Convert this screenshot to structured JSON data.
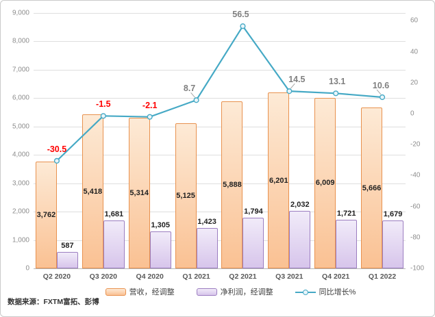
{
  "chart_data": {
    "type": "combo-bar-line",
    "categories": [
      "Q2 2020",
      "Q3 2020",
      "Q4 2020",
      "Q1 2021",
      "Q2 2021",
      "Q3 2021",
      "Q4 2021",
      "Q1 2022"
    ],
    "series": [
      {
        "name": "营收，经调整",
        "type": "bar",
        "axis": "left",
        "values": [
          3762,
          5418,
          5314,
          5125,
          5888,
          6201,
          6009,
          5666
        ],
        "labels": [
          "3,762",
          "5,418",
          "5,314",
          "5,125",
          "5,888",
          "6,201",
          "6,009",
          "5,666"
        ],
        "fill_top": "#fdead6",
        "fill_bottom": "#fac193",
        "border": "#e8914e",
        "label_placement": "inside-center"
      },
      {
        "name": "净利润，经调整",
        "type": "bar",
        "axis": "left",
        "values": [
          587,
          1681,
          1305,
          1423,
          1794,
          2032,
          1721,
          1679
        ],
        "labels": [
          "587",
          "1,681",
          "1,305",
          "1,423",
          "1,794",
          "2,032",
          "1,721",
          "1,679"
        ],
        "fill_top": "#f1ebf9",
        "fill_bottom": "#d7c5eb",
        "border": "#9b7dc0",
        "label_placement": "outside-end"
      },
      {
        "name": "同比增长%",
        "type": "line",
        "axis": "right",
        "values": [
          -30.5,
          -1.5,
          -2.1,
          8.7,
          56.5,
          14.5,
          13.1,
          10.6
        ],
        "labels": [
          "-30.5",
          "-1.5",
          "-2.1",
          "8.7",
          "56.5",
          "14.5",
          "13.1",
          "10.6"
        ],
        "color": "#45a9c5",
        "marker_fill": "#eaf5fa",
        "negative_label_color": "#ff0000",
        "positive_label_color": "#7f7f7f"
      }
    ],
    "left_axis": {
      "min": 0,
      "max": 9000,
      "tick_step": 1000,
      "tick_labels": [
        "0",
        "1,000",
        "2,000",
        "3,000",
        "4,000",
        "5,000",
        "6,000",
        "7,000",
        "8,000",
        "9,000"
      ]
    },
    "right_axis": {
      "min": -100,
      "max": 65,
      "tick_step": 20,
      "tick_labels": [
        "-100",
        "-80",
        "-60",
        "-40",
        "-20",
        "0",
        "20",
        "40",
        "60"
      ]
    },
    "grid": true,
    "legend_position": "bottom"
  },
  "source_note": "数据来源：FXTM富拓、彭博"
}
